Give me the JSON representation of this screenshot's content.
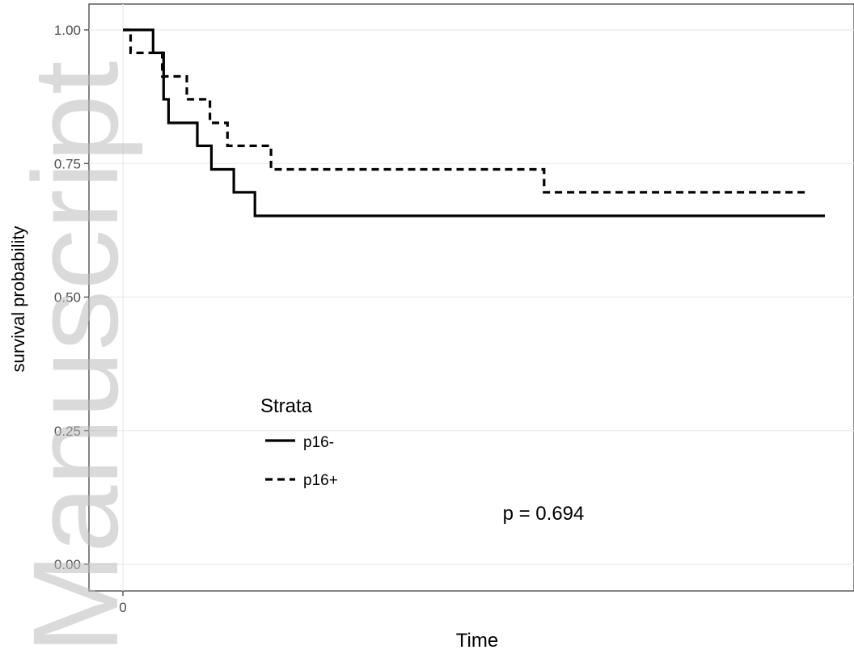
{
  "chart_data": {
    "type": "line",
    "subtype": "kaplan-meier step",
    "xlabel": "Time",
    "ylabel": "survival probability",
    "x_ticks": [
      "0"
    ],
    "y_ticks": [
      "0.00",
      "0.25",
      "0.50",
      "0.75",
      "1.00"
    ],
    "ylim": [
      0,
      1
    ],
    "xlim": [
      0,
      1
    ],
    "grid": true,
    "legend": {
      "title": "Strata",
      "position": "lower-left inside",
      "entries": [
        {
          "label": "p16-",
          "style": "solid"
        },
        {
          "label": "p16+",
          "style": "dashed"
        }
      ]
    },
    "annotation": "p = 0.694",
    "watermark": "Manuscript",
    "series": [
      {
        "name": "p16-",
        "style": "solid",
        "color": "#000000",
        "points": [
          [
            0.0,
            1.0
          ],
          [
            0.043,
            1.0
          ],
          [
            0.043,
            0.957
          ],
          [
            0.058,
            0.957
          ],
          [
            0.058,
            0.87
          ],
          [
            0.065,
            0.87
          ],
          [
            0.065,
            0.826
          ],
          [
            0.106,
            0.826
          ],
          [
            0.106,
            0.783
          ],
          [
            0.126,
            0.783
          ],
          [
            0.126,
            0.739
          ],
          [
            0.158,
            0.739
          ],
          [
            0.158,
            0.696
          ],
          [
            0.188,
            0.696
          ],
          [
            0.188,
            0.652
          ],
          [
            1.0,
            0.652
          ]
        ]
      },
      {
        "name": "p16+",
        "style": "dashed",
        "color": "#000000",
        "points": [
          [
            0.0,
            1.0
          ],
          [
            0.011,
            1.0
          ],
          [
            0.011,
            0.957
          ],
          [
            0.056,
            0.957
          ],
          [
            0.056,
            0.913
          ],
          [
            0.091,
            0.913
          ],
          [
            0.091,
            0.87
          ],
          [
            0.124,
            0.87
          ],
          [
            0.124,
            0.826
          ],
          [
            0.149,
            0.826
          ],
          [
            0.149,
            0.783
          ],
          [
            0.211,
            0.783
          ],
          [
            0.211,
            0.739
          ],
          [
            0.6,
            0.739
          ],
          [
            0.6,
            0.696
          ],
          [
            0.975,
            0.696
          ]
        ]
      }
    ]
  },
  "colors": {
    "line": "#000000",
    "grid": "#ebebeb",
    "axis": "#333333",
    "text": "#4d4d4d"
  }
}
